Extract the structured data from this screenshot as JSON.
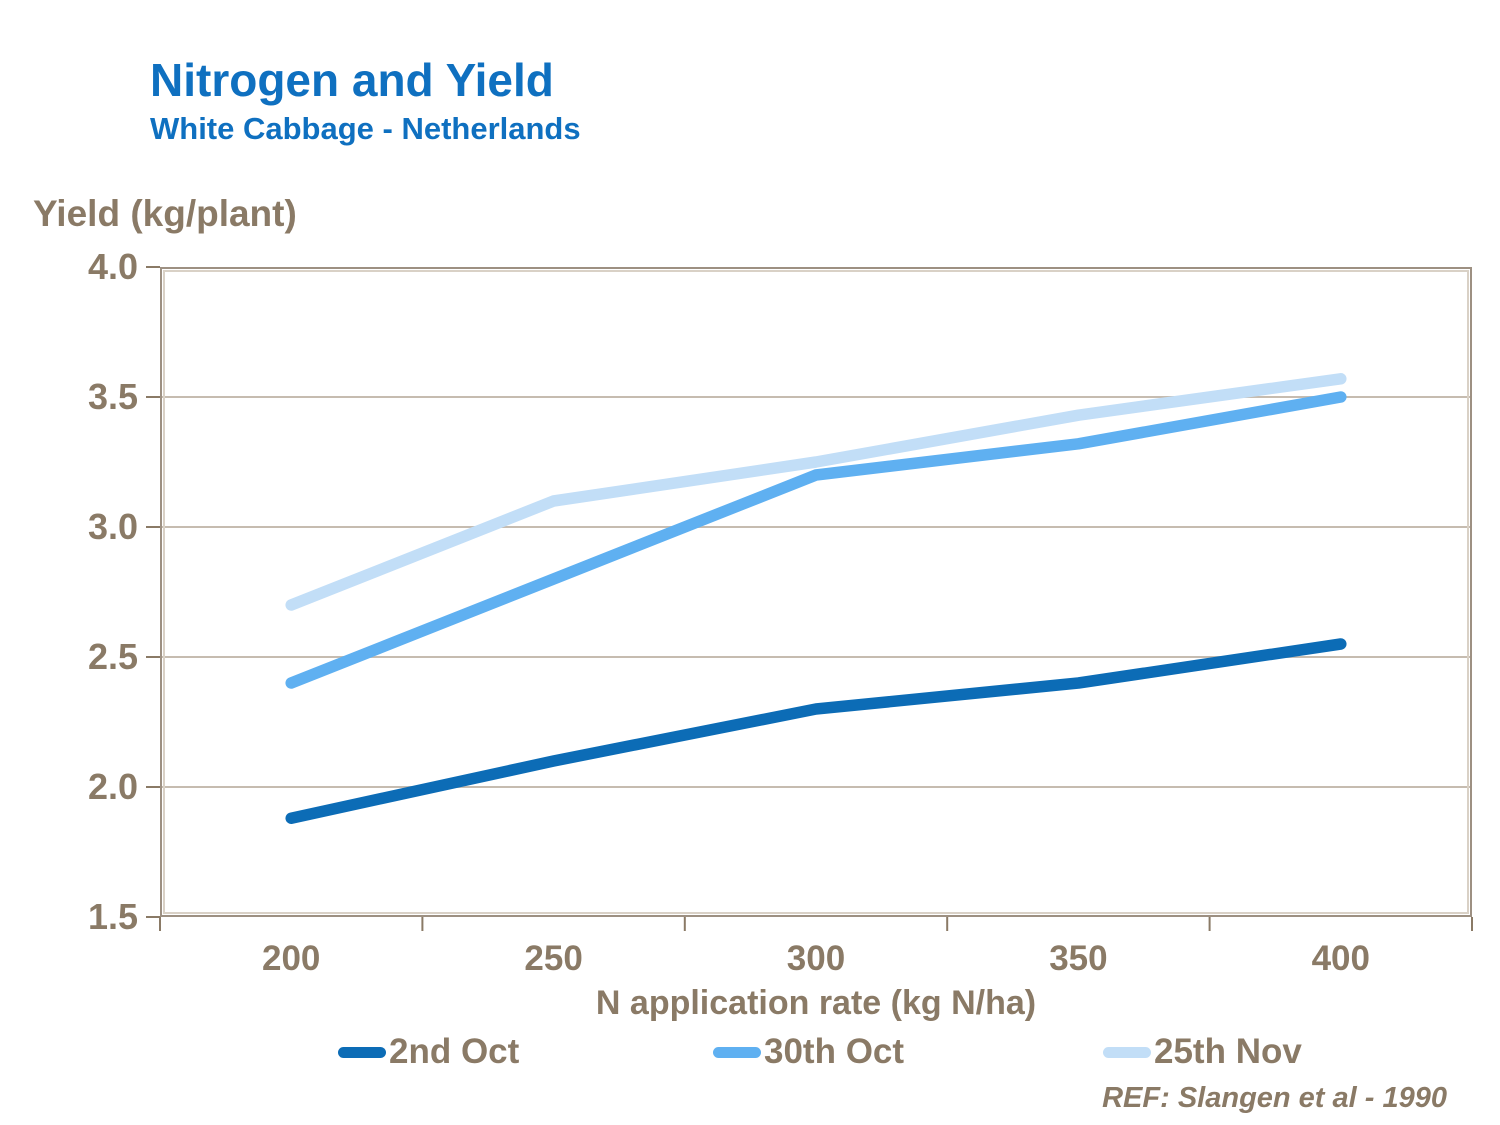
{
  "header": {
    "title": "Nitrogen and Yield",
    "subtitle": "White Cabbage - Netherlands"
  },
  "chart_data": {
    "type": "line",
    "title": "Nitrogen and Yield",
    "subtitle": "White Cabbage - Netherlands",
    "categories": [
      "200",
      "250",
      "300",
      "350",
      "400"
    ],
    "xlabel": "N application rate (kg N/ha)",
    "ylabel": "Yield (kg/plant)",
    "ylim": [
      1.5,
      4.0
    ],
    "ytick_step": 0.5,
    "ytick_labels": [
      "4.0",
      "3.5",
      "3.0",
      "2.5",
      "2.0",
      "1.5"
    ],
    "grid": "horizontal",
    "legend_position": "bottom",
    "series": [
      {
        "name": "2nd Oct",
        "color": "#0c6cb6",
        "values": [
          1.88,
          2.1,
          2.3,
          2.4,
          2.55
        ]
      },
      {
        "name": "30th Oct",
        "color": "#5fb0f1",
        "values": [
          2.4,
          2.8,
          3.2,
          3.32,
          3.5
        ]
      },
      {
        "name": "25th Nov",
        "color": "#c2def7",
        "values": [
          2.7,
          3.1,
          3.25,
          3.43,
          3.57
        ]
      }
    ]
  },
  "footer": {
    "ref": "REF: Slangen et al - 1990"
  },
  "colors": {
    "title_blue": "#0f70c0",
    "text_taupe": "#8a7a66",
    "gridline": "#c6bcb0",
    "border_outer": "#9d9082",
    "border_inner": "#d9d1c6"
  }
}
